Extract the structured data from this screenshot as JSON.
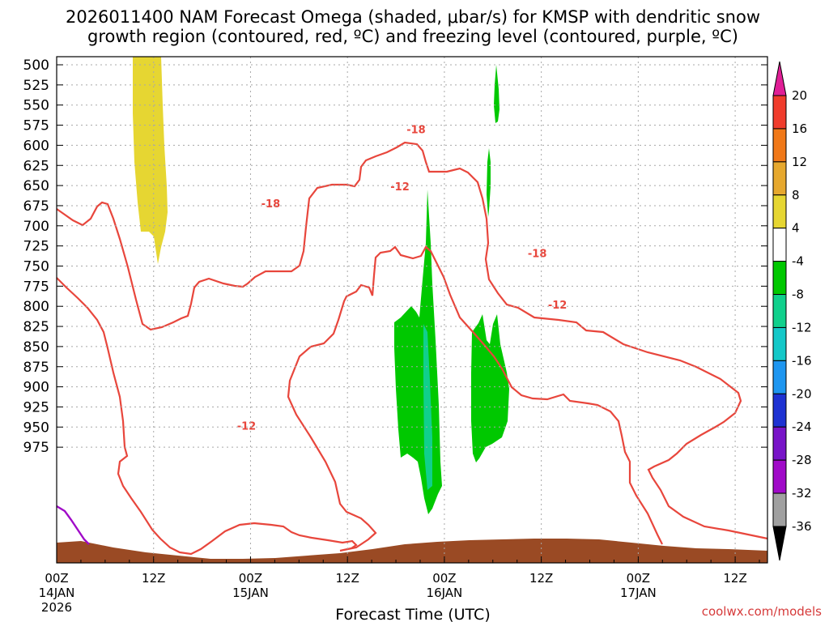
{
  "chart_data": {
    "type": "time-height cross section",
    "title_line1": "2026011400 NAM Forecast Omega (shaded, μbar/s) for KMSP with dendritic snow",
    "title_line2": "growth region (contoured, red, ºC) and freezing level (contoured, purple, ºC)",
    "xlabel": "Forecast Time (UTC)",
    "credit": "coolwx.com/models",
    "y_levels_hpa": [
      "500",
      "525",
      "550",
      "575",
      "600",
      "625",
      "650",
      "675",
      "700",
      "725",
      "750",
      "775",
      "800",
      "825",
      "850",
      "875",
      "900",
      "925",
      "950",
      "975"
    ],
    "x_ticks": [
      {
        "hour": 0,
        "label": "00Z",
        "sub1": "14JAN",
        "sub2": "2026"
      },
      {
        "hour": 12,
        "label": "12Z",
        "sub1": "",
        "sub2": ""
      },
      {
        "hour": 24,
        "label": "00Z",
        "sub1": "15JAN",
        "sub2": ""
      },
      {
        "hour": 36,
        "label": "12Z",
        "sub1": "",
        "sub2": ""
      },
      {
        "hour": 48,
        "label": "00Z",
        "sub1": "16JAN",
        "sub2": ""
      },
      {
        "hour": 60,
        "label": "12Z",
        "sub1": "",
        "sub2": ""
      },
      {
        "hour": 72,
        "label": "00Z",
        "sub1": "17JAN",
        "sub2": ""
      },
      {
        "hour": 84,
        "label": "12Z",
        "sub1": "",
        "sub2": ""
      }
    ],
    "colorbar": {
      "labels": [
        "20",
        "16",
        "12",
        "8",
        "4",
        "-4",
        "-8",
        "-12",
        "-16",
        "-20",
        "-24",
        "-28",
        "-32",
        "-36"
      ],
      "bins": [
        {
          "color": "#e01e96"
        },
        {
          "color": "#f03c2c"
        },
        {
          "color": "#f07818"
        },
        {
          "color": "#e6a82e"
        },
        {
          "color": "#e6d632"
        },
        {
          "color": "#ffffff"
        },
        {
          "color": "#00c800"
        },
        {
          "color": "#10d08c"
        },
        {
          "color": "#14c8c8"
        },
        {
          "color": "#1e96f0"
        },
        {
          "color": "#1e32d2"
        },
        {
          "color": "#7814c8"
        },
        {
          "color": "#a00ac8"
        },
        {
          "color": "#a0a0a0"
        },
        {
          "color": "#000000"
        }
      ]
    },
    "contour_labels": [
      {
        "text": "-18",
        "hour": 26.5,
        "hpa": 672
      },
      {
        "text": "-18",
        "hour": 44.5,
        "hpa": 580
      },
      {
        "text": "-12",
        "hour": 42.5,
        "hpa": 651
      },
      {
        "text": "-18",
        "hour": 59.5,
        "hpa": 734
      },
      {
        "text": "-12",
        "hour": 62.0,
        "hpa": 798
      },
      {
        "text": "-12",
        "hour": 23.5,
        "hpa": 948
      }
    ],
    "colors": {
      "dgz_contour": "#e8463c",
      "freezing_level": "#a00ac8",
      "terrain": "#9a4a24",
      "omega_weak_ascent": "#00c800",
      "omega_moderate_ascent": "#10d08c",
      "omega_weak_descent": "#e6d632",
      "grid": "#a0a0a0"
    }
  }
}
